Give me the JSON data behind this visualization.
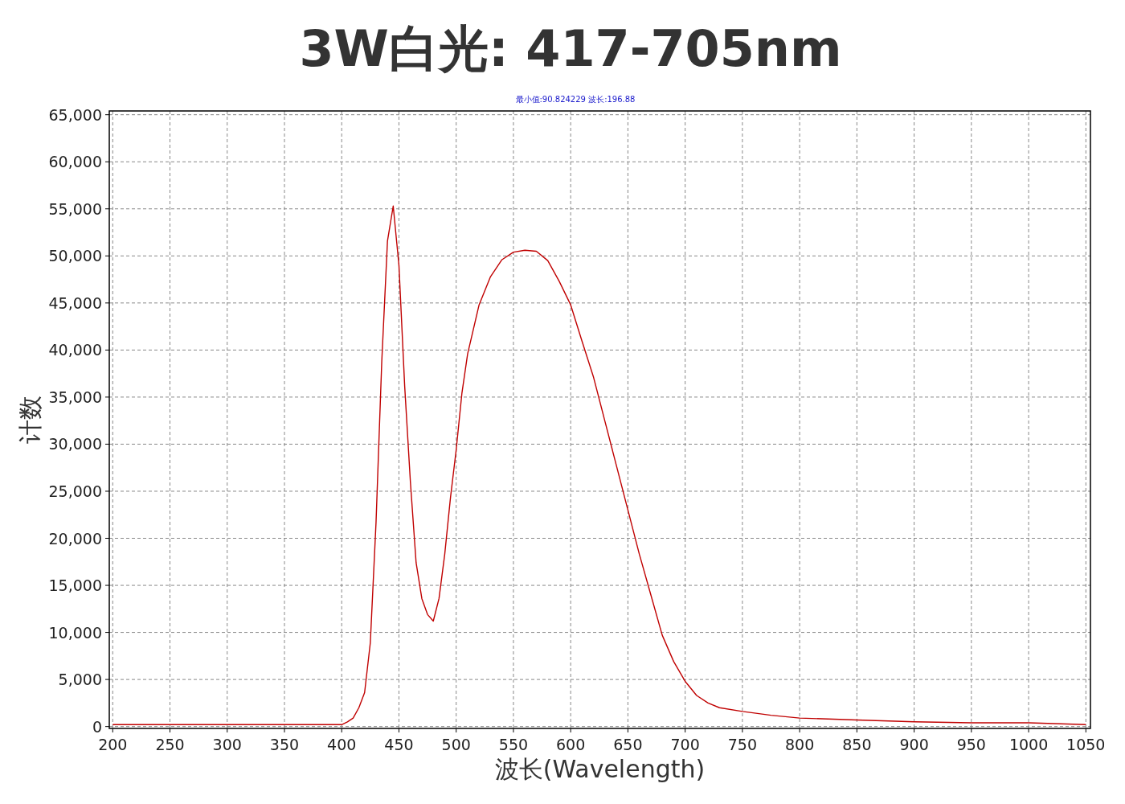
{
  "chart_data": {
    "type": "line",
    "title": "3W白光: 417-705nm",
    "xlabel": "波长(Wavelength)",
    "ylabel": "计数",
    "annotations": [
      "最小值:90.824229 波长:196.88"
    ],
    "x": [
      200,
      250,
      300,
      350,
      380,
      400,
      405,
      410,
      415,
      420,
      425,
      430,
      435,
      440,
      445,
      450,
      455,
      460,
      465,
      470,
      475,
      480,
      485,
      490,
      495,
      500,
      505,
      510,
      520,
      530,
      540,
      550,
      560,
      570,
      580,
      590,
      600,
      610,
      620,
      630,
      640,
      650,
      660,
      670,
      680,
      690,
      700,
      710,
      720,
      730,
      750,
      775,
      800,
      850,
      900,
      950,
      1000,
      1050
    ],
    "series": [
      {
        "color": "#c00000",
        "values": [
          200,
          200,
          200,
          200,
          200,
          200,
          500,
          900,
          2000,
          3600,
          8900,
          21700,
          38800,
          51600,
          55300,
          49000,
          36200,
          26000,
          17400,
          13600,
          11900,
          11200,
          13600,
          18300,
          24300,
          29400,
          35400,
          39600,
          44800,
          47800,
          49600,
          50400,
          50600,
          50500,
          49500,
          47300,
          44800,
          40900,
          37100,
          32400,
          27700,
          23000,
          18300,
          14000,
          9700,
          6900,
          4800,
          3300,
          2500,
          2000,
          1600,
          1200,
          900,
          700,
          500,
          400,
          400,
          200
        ]
      }
    ],
    "xlim": [
      197,
      1054
    ],
    "ylim": [
      -200,
      65400
    ],
    "xticks": [
      200,
      250,
      300,
      350,
      400,
      450,
      500,
      550,
      600,
      650,
      700,
      750,
      800,
      850,
      900,
      950,
      1000,
      1050
    ],
    "yticks": [
      0,
      {
        "value": 5000,
        "label": "5,000"
      },
      {
        "value": 10000,
        "label": "10,000"
      },
      {
        "value": 15000,
        "label": "15,000"
      },
      {
        "value": 20000,
        "label": "20,000"
      },
      {
        "value": 25000,
        "label": "25,000"
      },
      {
        "value": 30000,
        "label": "30,000"
      },
      {
        "value": 35000,
        "label": "35,000"
      },
      {
        "value": 40000,
        "label": "40,000"
      },
      {
        "value": 45000,
        "label": "45,000"
      },
      {
        "value": 50000,
        "label": "50,000"
      },
      {
        "value": 55000,
        "label": "55,000"
      },
      {
        "value": 60000,
        "label": "60,000"
      },
      {
        "value": 65000,
        "label": "65,000"
      }
    ],
    "grid": true,
    "line_style": "solid",
    "marker": "none"
  }
}
